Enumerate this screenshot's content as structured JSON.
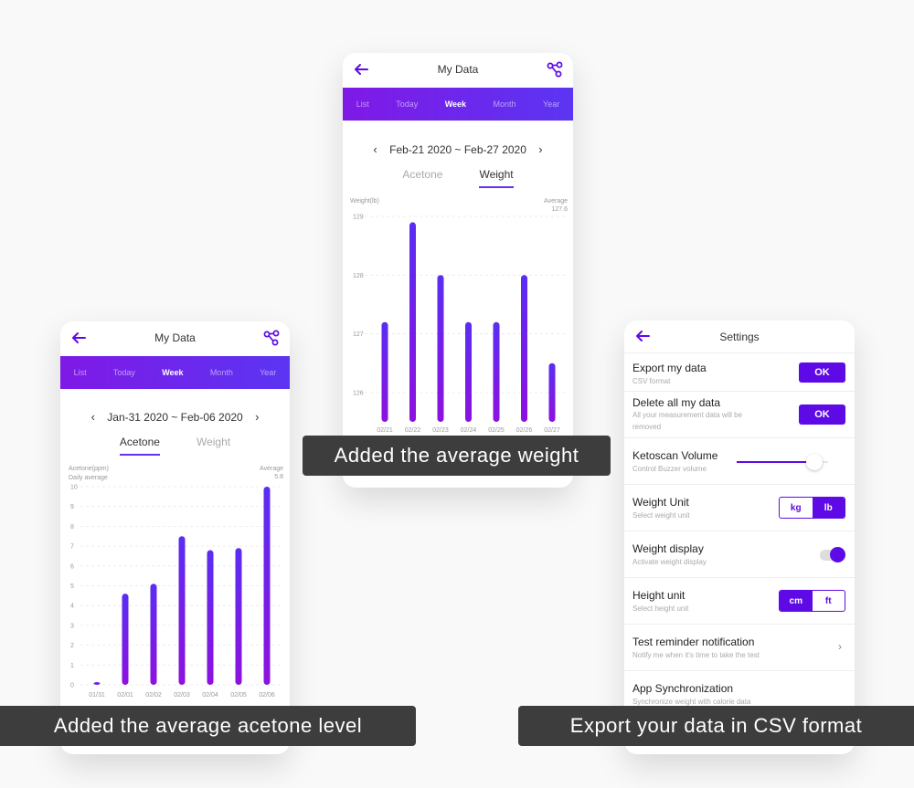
{
  "colors": {
    "accent": "#5e0ae6",
    "bar_top": "#5a2ef2",
    "bar_bottom": "#8d11de",
    "caption_bg": "#3d3d3d"
  },
  "left_screen": {
    "title": "My Data",
    "tabs": [
      "List",
      "Today",
      "Week",
      "Month",
      "Year"
    ],
    "active_tab": "Week",
    "date_range": "Jan-31 2020 ~ Feb-06 2020",
    "subtabs": [
      "Acetone",
      "Weight"
    ],
    "active_subtab": "Acetone",
    "chart_data": {
      "type": "bar",
      "ylabel": "Acetone(ppm)",
      "ylabel2": "Daily average",
      "average_label": "Average",
      "average_value": "5.8",
      "yticks": [
        "0",
        "1",
        "2",
        "3",
        "4",
        "5",
        "6",
        "7",
        "8",
        "9",
        "10"
      ],
      "ylim": [
        0,
        10
      ],
      "categories": [
        "01/31",
        "02/01",
        "02/02",
        "02/03",
        "02/04",
        "02/05",
        "02/06"
      ],
      "values": [
        0.1,
        4.6,
        5.1,
        7.5,
        6.8,
        6.9,
        10
      ]
    }
  },
  "middle_screen": {
    "title": "My Data",
    "tabs": [
      "List",
      "Today",
      "Week",
      "Month",
      "Year"
    ],
    "active_tab": "Week",
    "date_range": "Feb-21 2020 ~ Feb-27 2020",
    "subtabs": [
      "Acetone",
      "Weight"
    ],
    "active_subtab": "Weight",
    "chart_data": {
      "type": "bar",
      "ylabel": "Weight(lb)",
      "average_label": "Average",
      "average_value": "127.6",
      "yticks": [
        "126",
        "127",
        "128",
        "129"
      ],
      "ylim": [
        125.5,
        129
      ],
      "categories": [
        "02/21",
        "02/22",
        "02/23",
        "02/24",
        "02/25",
        "02/26",
        "02/27"
      ],
      "values": [
        127.2,
        128.9,
        128.0,
        127.2,
        127.2,
        128.0,
        126.5
      ]
    }
  },
  "settings_screen": {
    "title": "Settings",
    "rows": [
      {
        "label": "Export my data",
        "sub": "CSV format",
        "control": "OK"
      },
      {
        "label": "Delete all my data",
        "sub": "All your measurement data will be removed",
        "control": "OK"
      },
      {
        "label": "Ketoscan Volume",
        "sub": "Control Buzzer volume",
        "volume": 0.85
      },
      {
        "label": "Weight Unit",
        "sub": "Select weight unit",
        "options": [
          "kg",
          "lb"
        ],
        "selected": "lb"
      },
      {
        "label": "Weight display",
        "sub": "Activate weight display",
        "toggle": true
      },
      {
        "label": "Height unit",
        "sub": "Select height unit",
        "options": [
          "cm",
          "ft"
        ],
        "selected": "cm"
      },
      {
        "label": "Test reminder notification",
        "sub": "Notify me when it's time to take the test"
      },
      {
        "label": "App Synchronization",
        "sub": "Synchronize weight with calorie data"
      }
    ]
  },
  "captions": {
    "middle": "Added the average weight",
    "left": "Added the average acetone level",
    "right": "Export your data in CSV format"
  }
}
